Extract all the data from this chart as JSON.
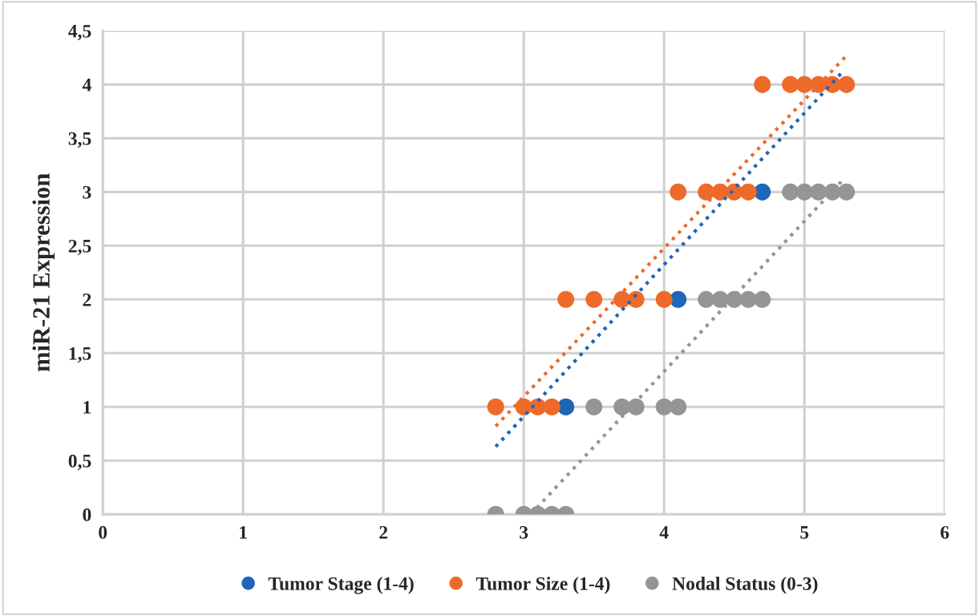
{
  "chart_data": {
    "type": "scatter",
    "ylabel": "miR-21 Expression",
    "xlim": [
      0,
      6
    ],
    "xticks": [
      0,
      1,
      2,
      3,
      4,
      5,
      6
    ],
    "ylim": [
      0,
      4.5
    ],
    "yticks": [
      0,
      {
        "value": 0.5,
        "label": "0,5"
      },
      1,
      {
        "value": 1.5,
        "label": "1,5"
      },
      2,
      {
        "value": 2.5,
        "label": "2,5"
      },
      3,
      {
        "value": 3.5,
        "label": "3,5"
      },
      4,
      {
        "value": 4.5,
        "label": "4,5"
      }
    ],
    "grid": true,
    "legend": "bottom",
    "marker": "circle",
    "series": [
      {
        "name": "Tumor Stage (1-4)",
        "color": "#1f65b8",
        "x": [
          3.3,
          4.1,
          4.7
        ],
        "values": [
          1,
          2,
          3
        ]
      },
      {
        "name": "Tumor Size (1-4)",
        "color": "#ee6a2b",
        "x": [
          2.8,
          3.0,
          3.1,
          3.2,
          3.3,
          3.5,
          3.7,
          3.8,
          4.0,
          4.1,
          4.3,
          4.4,
          4.5,
          4.6,
          4.7,
          4.9,
          5.0,
          5.1,
          5.2,
          5.3
        ],
        "values": [
          1,
          1,
          1,
          1,
          2,
          2,
          2,
          2,
          2,
          3,
          3,
          3,
          3,
          3,
          4,
          4,
          4,
          4,
          4,
          4
        ]
      },
      {
        "name": "Nodal Status (0-3)",
        "color": "#959595",
        "x": [
          2.8,
          3.0,
          3.1,
          3.2,
          3.3,
          3.5,
          3.7,
          3.8,
          4.0,
          4.1,
          4.3,
          4.4,
          4.5,
          4.6,
          4.7,
          4.9,
          5.0,
          5.1,
          5.2,
          5.3
        ],
        "values": [
          0,
          0,
          0,
          0,
          0,
          1,
          1,
          1,
          1,
          1,
          2,
          2,
          2,
          2,
          2,
          3,
          3,
          3,
          3,
          3
        ]
      },
      {
        "type": "line",
        "line_style": "dotted",
        "marker": "none",
        "color": "#1f65b8",
        "x": [
          2.8,
          5.28
        ],
        "values": [
          0.63,
          4.13
        ]
      },
      {
        "type": "line",
        "line_style": "dotted",
        "marker": "none",
        "color": "#ee6a2b",
        "x": [
          2.8,
          5.3
        ],
        "values": [
          0.82,
          4.27
        ]
      },
      {
        "type": "line",
        "line_style": "dotted",
        "marker": "none",
        "color": "#959595",
        "x": [
          3.05,
          5.28
        ],
        "values": [
          0,
          3.12
        ]
      }
    ]
  }
}
